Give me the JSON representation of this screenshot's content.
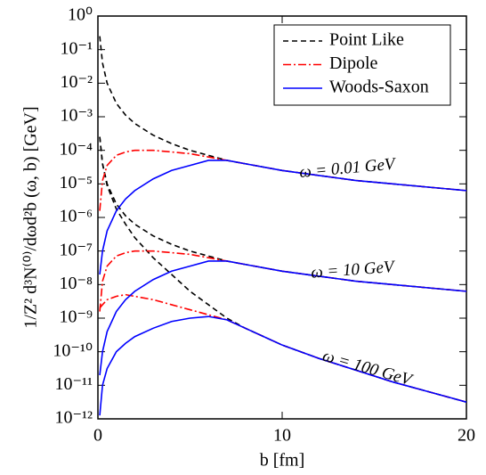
{
  "chart_data": {
    "type": "line",
    "log_y": true,
    "xlabel": "b [fm]",
    "ylabel": "1/Z² d³N⁽⁰⁾/dωd²b (ω, b) [GeV]",
    "xlim": [
      0,
      20
    ],
    "xticks": [
      0,
      10,
      20
    ],
    "ylim": [
      1e-12,
      1
    ],
    "yticks": [
      {
        "value": 1,
        "label": "10⁰"
      },
      {
        "value": 0.1,
        "label": "10⁻¹"
      },
      {
        "value": 0.01,
        "label": "10⁻²"
      },
      {
        "value": 0.001,
        "label": "10⁻³"
      },
      {
        "value": 0.0001,
        "label": "10⁻⁴"
      },
      {
        "value": 1e-05,
        "label": "10⁻⁵"
      },
      {
        "value": 1e-06,
        "label": "10⁻⁶"
      },
      {
        "value": 1e-07,
        "label": "10⁻⁷"
      },
      {
        "value": 1e-08,
        "label": "10⁻⁸"
      },
      {
        "value": 1e-09,
        "label": "10⁻⁹"
      },
      {
        "value": 1e-10,
        "label": "10⁻¹⁰"
      },
      {
        "value": 1e-11,
        "label": "10⁻¹¹"
      },
      {
        "value": 1e-12,
        "label": "10⁻¹²"
      }
    ],
    "legend": "upper right",
    "annotations": [
      "ω = 0.01 GeV",
      "ω = 10 GeV",
      "ω = 100 GeV"
    ],
    "x": [
      0.1,
      0.25,
      0.5,
      1,
      1.5,
      2,
      3,
      4,
      5,
      6,
      7,
      8,
      10,
      12,
      14,
      16,
      18,
      20
    ],
    "series": [
      {
        "name": "Point Like",
        "color": "#000000",
        "dash": "6,4",
        "values": [
          [
            0.251,
            0.0398,
            0.01,
            0.00251,
            0.00112,
            0.000631,
            0.000282,
            0.000158,
            0.0001,
            7.08e-05,
            5.01e-05,
            3.98e-05,
            2.51e-05,
            1.78e-05,
            1.26e-05,
            1e-05,
            7.94e-06,
            6.31e-06
          ],
          [
            0.000251,
            3.98e-05,
            1e-05,
            2.51e-06,
            1.12e-06,
            6.31e-07,
            2.82e-07,
            1.58e-07,
            1e-07,
            7.08e-08,
            5.01e-08,
            3.98e-08,
            2.51e-08,
            1.78e-08,
            1.26e-08,
            1e-08,
            7.94e-09,
            6.31e-09
          ],
          [
            0.000251,
            3.98e-05,
            8.91e-06,
            1.78e-06,
            6.31e-07,
            2.51e-07,
            6.31e-08,
            2e-08,
            6.31e-09,
            2.51e-09,
            1e-09,
            5.01e-10,
            1.58e-10,
            6.31e-11,
            2.82e-11,
            1.26e-11,
            6.31e-12,
            3.16e-12
          ]
        ]
      },
      {
        "name": "Dipole",
        "color": "#ff0000",
        "dash": "9,3,2,3",
        "values": [
          [
            1.58e-06,
            1.26e-05,
            3.55e-05,
            7.08e-05,
            8.91e-05,
            0.0001,
            0.0001,
            8.91e-05,
            7.94e-05,
            6.31e-05,
            5.01e-05,
            3.98e-05,
            2.51e-05,
            1.78e-05,
            1.26e-05,
            1e-05,
            7.94e-06,
            6.31e-06
          ],
          [
            1.58e-09,
            1.26e-08,
            3.55e-08,
            7.08e-08,
            8.91e-08,
            1e-07,
            1e-07,
            8.91e-08,
            7.94e-08,
            6.31e-08,
            5.01e-08,
            3.98e-08,
            2.51e-08,
            1.78e-08,
            1.26e-08,
            1e-08,
            7.94e-09,
            6.31e-09
          ],
          [
            2e-09,
            2.51e-09,
            3.55e-09,
            4.47e-09,
            5.01e-09,
            4.47e-09,
            3.55e-09,
            2.51e-09,
            1.78e-09,
            1.26e-09,
            8.91e-10,
            5.01e-10,
            1.58e-10,
            6.31e-11,
            2.82e-11,
            1.26e-11,
            6.31e-12,
            3.16e-12
          ]
        ]
      },
      {
        "name": "Woods-Saxon",
        "color": "#0000ff",
        "dash": "none",
        "values": [
          [
            2e-08,
            1e-07,
            3.98e-07,
            1.58e-06,
            3.55e-06,
            6.31e-06,
            1.41e-05,
            2.51e-05,
            3.55e-05,
            5.01e-05,
            5.01e-05,
            3.98e-05,
            2.51e-05,
            1.78e-05,
            1.26e-05,
            1e-05,
            7.94e-06,
            6.31e-06
          ],
          [
            2e-11,
            1e-10,
            3.98e-10,
            1.58e-09,
            3.55e-09,
            6.31e-09,
            1.41e-08,
            2.51e-08,
            3.55e-08,
            5.01e-08,
            5.01e-08,
            3.98e-08,
            2.51e-08,
            1.78e-08,
            1.26e-08,
            1e-08,
            7.94e-09,
            6.31e-09
          ],
          [
            1.26e-12,
            1e-11,
            3.16e-11,
            1e-10,
            1.78e-10,
            2.82e-10,
            5.01e-10,
            7.94e-10,
            1e-09,
            1.12e-09,
            8.91e-10,
            5.01e-10,
            1.58e-10,
            6.31e-11,
            2.82e-11,
            1.26e-11,
            6.31e-12,
            3.16e-12
          ]
        ]
      }
    ]
  }
}
